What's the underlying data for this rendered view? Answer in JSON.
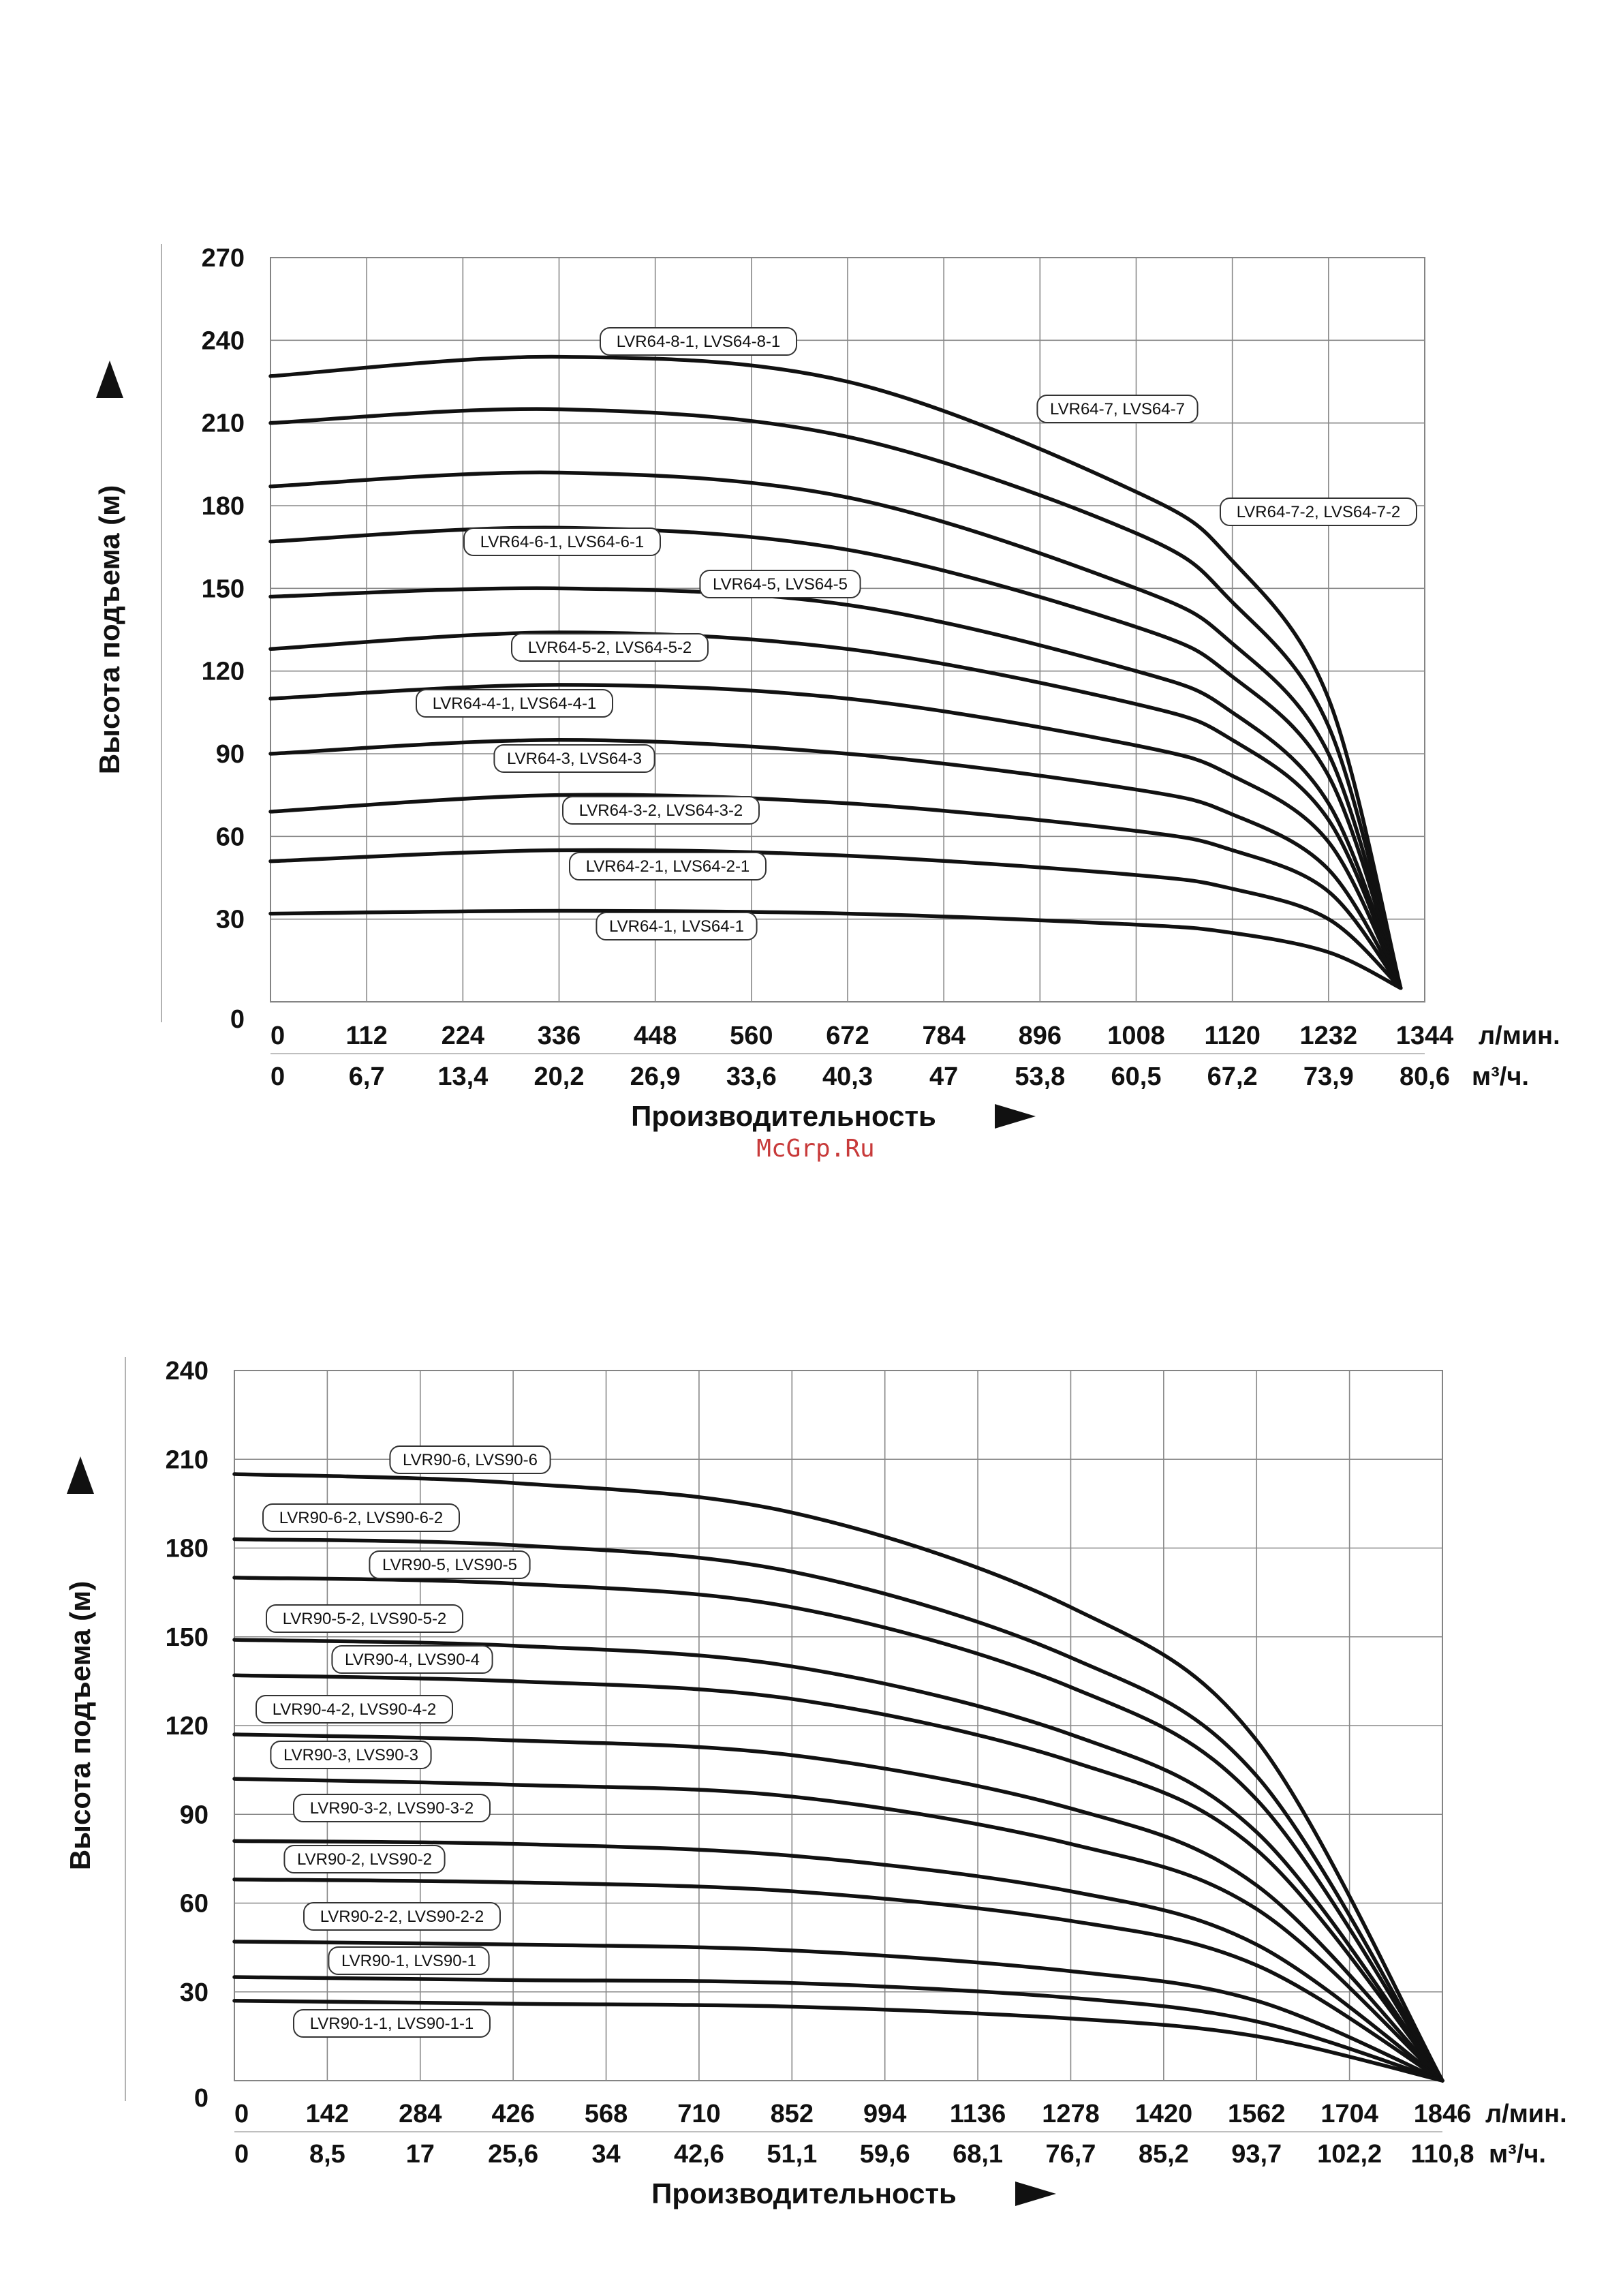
{
  "watermark": "McGrp.Ru",
  "chart_data": [
    {
      "type": "line",
      "ylabel": "Высота подъема (м)",
      "xlabel": "Производительность",
      "ylim": [
        0,
        270
      ],
      "y_ticks": [
        0,
        30,
        60,
        90,
        120,
        150,
        180,
        210,
        240,
        270
      ],
      "x_ticks_lmin": [
        "0",
        "112",
        "224",
        "336",
        "448",
        "560",
        "672",
        "784",
        "896",
        "1008",
        "1120",
        "1232",
        "1344"
      ],
      "x_unit_lmin": "л/мин.",
      "x_ticks_m3h": [
        "0",
        "6,7",
        "13,4",
        "20,2",
        "26,9",
        "33,6",
        "40,3",
        "47",
        "53,8",
        "60,5",
        "67,2",
        "73,9",
        "80,6"
      ],
      "x_unit_m3h": "м³/ч.",
      "xlim": [
        0,
        1344
      ],
      "grid": true,
      "series": [
        {
          "name": "LVR64-8-1, LVS64-8-1",
          "x": [
            0,
            336,
            672,
            1008,
            1120,
            1232,
            1316
          ],
          "y": [
            227,
            234,
            225,
            185,
            160,
            110,
            5
          ]
        },
        {
          "name": "LVR64-7, LVS64-7",
          "x": [
            0,
            336,
            672,
            1008,
            1120,
            1232,
            1316
          ],
          "y": [
            210,
            215,
            205,
            170,
            145,
            100,
            5
          ]
        },
        {
          "name": "LVR64-7-2, LVS64-7-2",
          "x": [
            0,
            336,
            672,
            1008,
            1120,
            1232,
            1316
          ],
          "y": [
            187,
            192,
            183,
            150,
            130,
            90,
            5
          ]
        },
        {
          "name": "LVR64-6-1, LVS64-6-1",
          "x": [
            0,
            336,
            672,
            1008,
            1120,
            1232,
            1316
          ],
          "y": [
            167,
            172,
            164,
            136,
            118,
            82,
            5
          ]
        },
        {
          "name": "LVR64-5, LVS64-5",
          "x": [
            0,
            336,
            672,
            1008,
            1120,
            1232,
            1316
          ],
          "y": [
            147,
            150,
            144,
            120,
            105,
            72,
            5
          ]
        },
        {
          "name": "LVR64-5-2, LVS64-5-2",
          "x": [
            0,
            336,
            672,
            1008,
            1120,
            1232,
            1316
          ],
          "y": [
            128,
            134,
            128,
            108,
            95,
            66,
            5
          ]
        },
        {
          "name": "LVR64-4-1, LVS64-4-1",
          "x": [
            0,
            336,
            672,
            1008,
            1120,
            1232,
            1316
          ],
          "y": [
            110,
            115,
            110,
            93,
            82,
            58,
            5
          ]
        },
        {
          "name": "LVR64-3, LVS64-3",
          "x": [
            0,
            336,
            672,
            1008,
            1120,
            1232,
            1316
          ],
          "y": [
            90,
            95,
            90,
            77,
            68,
            48,
            5
          ]
        },
        {
          "name": "LVR64-3-2, LVS64-3-2",
          "x": [
            0,
            336,
            672,
            1008,
            1120,
            1232,
            1316
          ],
          "y": [
            69,
            75,
            72,
            62,
            55,
            40,
            5
          ]
        },
        {
          "name": "LVR64-2-1, LVS64-2-1",
          "x": [
            0,
            336,
            672,
            1008,
            1120,
            1232,
            1316
          ],
          "y": [
            51,
            55,
            53,
            46,
            41,
            30,
            5
          ]
        },
        {
          "name": "LVR64-1, LVS64-1",
          "x": [
            0,
            336,
            672,
            1008,
            1120,
            1232,
            1316
          ],
          "y": [
            32,
            33,
            32,
            28,
            25,
            18,
            5
          ]
        }
      ]
    },
    {
      "type": "line",
      "ylabel": "Высота подъема (м)",
      "xlabel": "Производительность",
      "ylim": [
        0,
        240
      ],
      "y_ticks": [
        0,
        30,
        60,
        90,
        120,
        150,
        180,
        210,
        240
      ],
      "x_ticks_lmin": [
        "0",
        "142",
        "284",
        "426",
        "568",
        "710",
        "852",
        "994",
        "1136",
        "1278",
        "1420",
        "1562",
        "1704",
        "1846"
      ],
      "x_unit_lmin": "л/мин.",
      "x_ticks_m3h": [
        "0",
        "8,5",
        "17",
        "25,6",
        "34",
        "42,6",
        "51,1",
        "59,6",
        "68,1",
        "76,7",
        "85,2",
        "93,7",
        "102,2",
        "110,8"
      ],
      "x_unit_m3h": "м³/ч.",
      "xlim": [
        0,
        1846
      ],
      "grid": true,
      "series": [
        {
          "name": "LVR90-6, LVS90-6",
          "x": [
            0,
            426,
            852,
            1278,
            1562,
            1846
          ],
          "y": [
            205,
            202,
            192,
            160,
            115,
            0
          ]
        },
        {
          "name": "LVR90-6-2, LVS90-6-2",
          "x": [
            0,
            426,
            852,
            1278,
            1562,
            1846
          ],
          "y": [
            183,
            181,
            172,
            143,
            103,
            0
          ]
        },
        {
          "name": "LVR90-5, LVS90-5",
          "x": [
            0,
            426,
            852,
            1278,
            1562,
            1846
          ],
          "y": [
            170,
            168,
            160,
            133,
            95,
            0
          ]
        },
        {
          "name": "LVR90-5-2, LVS90-5-2",
          "x": [
            0,
            426,
            852,
            1278,
            1562,
            1846
          ],
          "y": [
            149,
            147,
            140,
            117,
            84,
            0
          ]
        },
        {
          "name": "LVR90-4, LVS90-4",
          "x": [
            0,
            426,
            852,
            1278,
            1562,
            1846
          ],
          "y": [
            137,
            135,
            129,
            108,
            78,
            0
          ]
        },
        {
          "name": "LVR90-4-2, LVS90-4-2",
          "x": [
            0,
            426,
            852,
            1278,
            1562,
            1846
          ],
          "y": [
            117,
            115,
            110,
            92,
            66,
            0
          ]
        },
        {
          "name": "LVR90-3, LVS90-3",
          "x": [
            0,
            426,
            852,
            1278,
            1562,
            1846
          ],
          "y": [
            102,
            100,
            96,
            80,
            58,
            0
          ]
        },
        {
          "name": "LVR90-3-2, LVS90-3-2",
          "x": [
            0,
            426,
            852,
            1278,
            1562,
            1846
          ],
          "y": [
            81,
            80,
            76,
            64,
            46,
            0
          ]
        },
        {
          "name": "LVR90-2, LVS90-2",
          "x": [
            0,
            426,
            852,
            1278,
            1562,
            1846
          ],
          "y": [
            68,
            67,
            64,
            54,
            39,
            0
          ]
        },
        {
          "name": "LVR90-2-2, LVS90-2-2",
          "x": [
            0,
            426,
            852,
            1278,
            1562,
            1846
          ],
          "y": [
            47,
            46,
            44,
            37,
            27,
            0
          ]
        },
        {
          "name": "LVR90-1, LVS90-1",
          "x": [
            0,
            426,
            852,
            1278,
            1562,
            1846
          ],
          "y": [
            35,
            34,
            33,
            28,
            20,
            0
          ]
        },
        {
          "name": "LVR90-1-1, LVS90-1-1",
          "x": [
            0,
            426,
            852,
            1278,
            1562,
            1846
          ],
          "y": [
            27,
            26,
            25,
            21,
            15,
            0
          ]
        }
      ]
    }
  ]
}
